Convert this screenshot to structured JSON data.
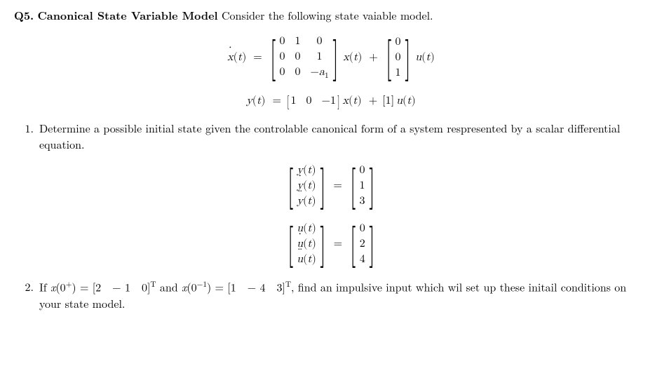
{
  "header": {
    "label": "Q5.",
    "title": "Canonical State Variable Model",
    "intro": "Consider the following state vaiable model."
  },
  "eq1": {
    "lhs": "ẋ(t)",
    "A": [
      [
        "0",
        "1",
        "0"
      ],
      [
        "0",
        "0",
        "1"
      ],
      [
        "0",
        "0",
        "−a₁"
      ]
    ],
    "mid1": "x(t)",
    "plus": "+",
    "B": [
      [
        "0"
      ],
      [
        "0"
      ],
      [
        "1"
      ]
    ],
    "mid2": "u(t)"
  },
  "eq2": {
    "lhs": "y(t)",
    "C": [
      "1",
      "0",
      "−1"
    ],
    "mid1": "x(t)",
    "plus": "+",
    "D": [
      "1"
    ],
    "mid2": "u(t)"
  },
  "parts": {
    "p1": {
      "num": "1.",
      "text": "Determine a possible initial state given the controlable canonical form of a system respresented by a scalar differential equation."
    },
    "p2": {
      "num": "2.",
      "text_a": "If ",
      "x0p": "x(0⁺) = [2  − 1  0]ᵀ",
      "text_b": " and ",
      "x0m": "x(0⁻¹) = [1  − 4  3]ᵀ",
      "text_c": ", find an impulsive input which wil set up these initail conditions on your state model."
    }
  },
  "eq3": {
    "Y": [
      "y(t)",
      "ẏ(t)",
      "ÿ(t)"
    ],
    "Yv": [
      "0",
      "1",
      "3"
    ]
  },
  "eq4": {
    "U": [
      "u(t)",
      "u̇(t)",
      "ü(t)"
    ],
    "Uv": [
      "0",
      "2",
      "4"
    ]
  }
}
